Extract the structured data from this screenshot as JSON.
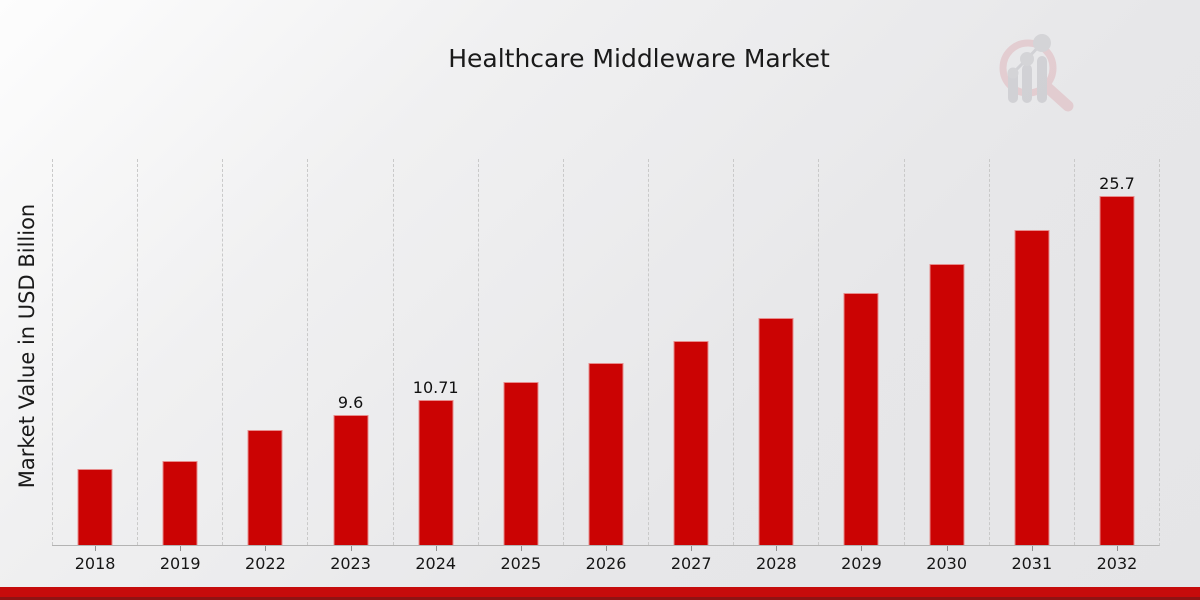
{
  "header": {
    "title": "Healthcare Middleware Market"
  },
  "y_axis": {
    "label": "Market Value in USD Billion"
  },
  "chart_data": {
    "type": "bar",
    "title": "Healthcare Middleware Market",
    "xlabel": "",
    "ylabel": "Market Value in USD Billion",
    "categories": [
      "2018",
      "2019",
      "2022",
      "2023",
      "2024",
      "2025",
      "2026",
      "2027",
      "2028",
      "2029",
      "2030",
      "2031",
      "2032"
    ],
    "values": [
      5.6,
      6.2,
      8.5,
      9.6,
      10.71,
      12.0,
      13.4,
      15.0,
      16.7,
      18.6,
      20.7,
      23.2,
      25.7
    ],
    "point_labels": [
      "",
      "",
      "",
      "9.6",
      "10.71",
      "",
      "",
      "",
      "",
      "",
      "",
      "",
      "25.7"
    ],
    "labeled_points_note": "only 2023, 2024 and 2032 bars carry printed value labels; other values estimated from bar heights",
    "bar_color": "#cb0303",
    "ylim": [
      0,
      28.4
    ],
    "grid": "vertical dashed gridlines between categories, no horizontal gridlines, no y tick labels",
    "legend": "none"
  },
  "branding": {
    "logo_icon": "magnifier-growth-chart-logo",
    "ring_color": "#dfb7bd",
    "bars_color": "#bfbfc4"
  },
  "footer": {
    "banner_color": "#c60b0b",
    "banner_edge_color": "#8e1313"
  }
}
